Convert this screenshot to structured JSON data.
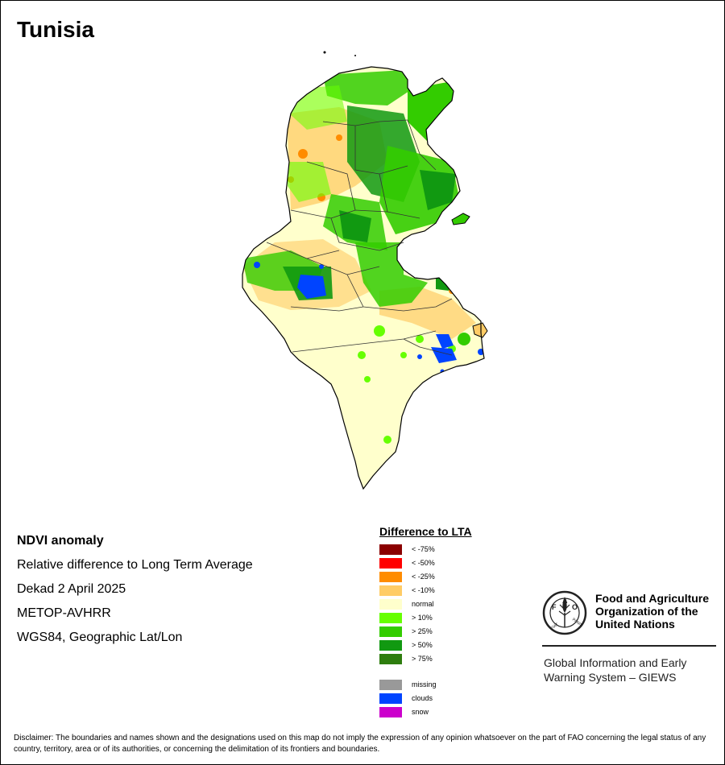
{
  "title": "Tunisia",
  "info": {
    "product": "NDVI anomaly",
    "description": "Relative difference to Long Term Average",
    "period": "Dekad 2 April 2025",
    "sensor": "METOP-AVHRR",
    "projection": "WGS84, Geographic Lat/Lon"
  },
  "legend": {
    "title": "Difference to LTA",
    "classes": [
      {
        "label": "< -75%",
        "color": "#8b0000"
      },
      {
        "label": "< -50%",
        "color": "#ff0000"
      },
      {
        "label": "< -25%",
        "color": "#ff8c00"
      },
      {
        "label": "< -10%",
        "color": "#ffcc66"
      },
      {
        "label": "normal",
        "color": "#ffffcc"
      },
      {
        "label": "> 10%",
        "color": "#66ff00"
      },
      {
        "label": "> 25%",
        "color": "#33cc00"
      },
      {
        "label": "> 50%",
        "color": "#119911"
      },
      {
        "label": "> 75%",
        "color": "#2e7d0e"
      }
    ],
    "extra": [
      {
        "label": "missing",
        "color": "#999999"
      },
      {
        "label": "clouds",
        "color": "#0044ff"
      },
      {
        "label": "snow",
        "color": "#cc00cc"
      }
    ]
  },
  "fao": {
    "emblem_text": "FAO",
    "emblem_motto": "FIAT PANIS",
    "name_lines": [
      "Food and Agriculture",
      "Organization of the",
      "United Nations"
    ],
    "giews_lines": [
      "Global Information and Early",
      "Warning System – GIEWS"
    ]
  },
  "disclaimer": "Disclaimer: The boundaries and names shown and the designations used on this map do not imply the expression of any opinion whatsoever on the part of FAO concerning the legal status of any country, territory, area or of its authorities, or concerning the delimitation of its frontiers and boundaries.",
  "colors": {
    "normal": "#ffffcc",
    "border": "#000000"
  }
}
